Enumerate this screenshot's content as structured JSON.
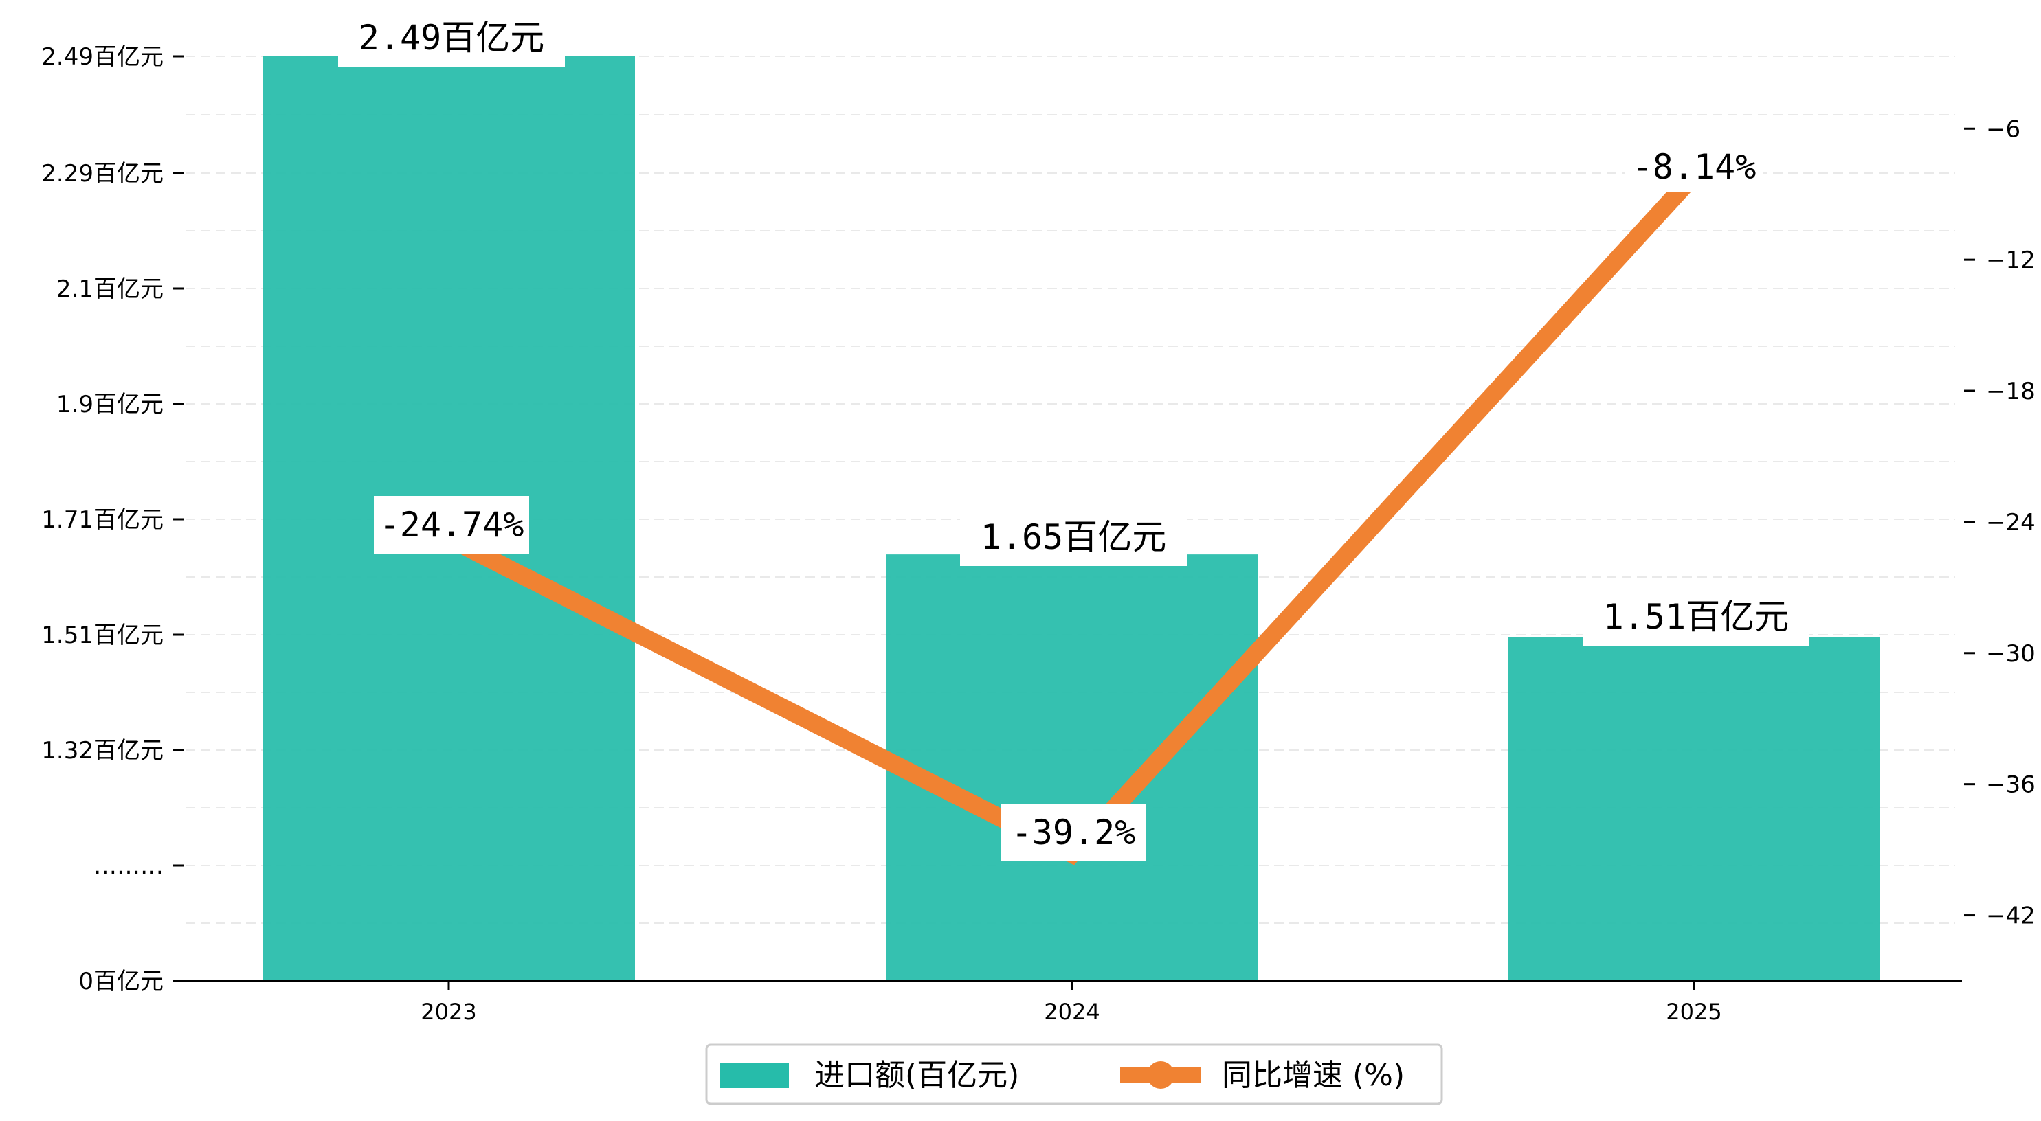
{
  "chart_data": {
    "type": "bar+line",
    "categories": [
      "2023",
      "2024",
      "2025"
    ],
    "bar_series": {
      "name": "进口额(百亿元)",
      "values": [
        2.49,
        1.65,
        1.51
      ],
      "labels": [
        "2.49百亿元",
        "1.65百亿元",
        "1.51百亿元"
      ],
      "color": "#26bcaa"
    },
    "line_series": {
      "name": "同比增速 (%)",
      "values": [
        -24.74,
        -39.2,
        -8.14
      ],
      "labels": [
        "-24.74%",
        "-39.2%",
        "-8.14%"
      ],
      "color": "#f08232"
    },
    "y_left": {
      "tick_labels": [
        "0百亿元",
        "………",
        "1.32百亿元",
        "1.51百亿元",
        "1.71百亿元",
        "1.9百亿元",
        "2.1百亿元",
        "2.29百亿元",
        "2.49百亿元"
      ],
      "note": "broken axis"
    },
    "y_right": {
      "ticks": [
        -42,
        -36,
        -30,
        -24,
        -18,
        -12,
        -6
      ],
      "ylim": [
        -45,
        -2
      ]
    },
    "grid": "horizontal dashed",
    "legend_position": "bottom-center"
  }
}
